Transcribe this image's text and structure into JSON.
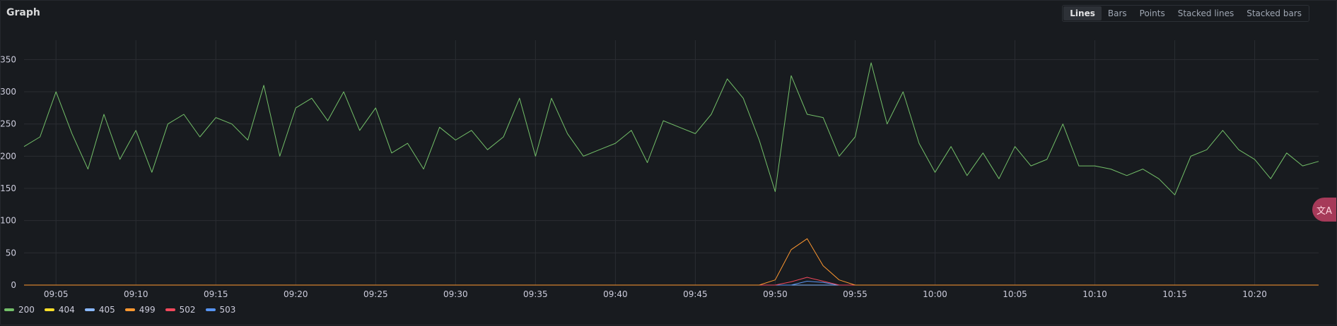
{
  "panel": {
    "title": "Graph"
  },
  "toolbar": {
    "options": [
      {
        "label": "Lines",
        "active": true
      },
      {
        "label": "Bars",
        "active": false
      },
      {
        "label": "Points",
        "active": false
      },
      {
        "label": "Stacked lines",
        "active": false
      },
      {
        "label": "Stacked bars",
        "active": false
      }
    ]
  },
  "legend": [
    {
      "name": "200",
      "color": "#73bf69"
    },
    {
      "name": "404",
      "color": "#fade2a"
    },
    {
      "name": "405",
      "color": "#8ab8ff"
    },
    {
      "name": "499",
      "color": "#ff9830"
    },
    {
      "name": "502",
      "color": "#f2495c"
    },
    {
      "name": "503",
      "color": "#5794f2"
    }
  ],
  "translate_button": {
    "icon": "translate-icon",
    "glyph": "文A"
  },
  "chart_data": {
    "type": "line",
    "title": "Graph",
    "x_range": [
      "09:03",
      "10:24"
    ],
    "xtick_labels": [
      "09:05",
      "09:10",
      "09:15",
      "09:20",
      "09:25",
      "09:30",
      "09:35",
      "09:40",
      "09:45",
      "09:50",
      "09:55",
      "10:00",
      "10:05",
      "10:10",
      "10:15",
      "10:20"
    ],
    "ylim": [
      0,
      380
    ],
    "yticks": [
      0,
      50,
      100,
      150,
      200,
      250,
      300,
      350
    ],
    "grid": true,
    "legend_position": "bottom-left",
    "series": [
      {
        "name": "200",
        "color": "#73bf69",
        "points": [
          [
            "09:03",
            215
          ],
          [
            "09:04",
            230
          ],
          [
            "09:05",
            300
          ],
          [
            "09:06",
            235
          ],
          [
            "09:07",
            180
          ],
          [
            "09:08",
            265
          ],
          [
            "09:09",
            195
          ],
          [
            "09:10",
            240
          ],
          [
            "09:11",
            175
          ],
          [
            "09:12",
            250
          ],
          [
            "09:13",
            265
          ],
          [
            "09:14",
            230
          ],
          [
            "09:15",
            260
          ],
          [
            "09:16",
            250
          ],
          [
            "09:17",
            225
          ],
          [
            "09:18",
            310
          ],
          [
            "09:19",
            200
          ],
          [
            "09:20",
            275
          ],
          [
            "09:21",
            290
          ],
          [
            "09:22",
            255
          ],
          [
            "09:23",
            300
          ],
          [
            "09:24",
            240
          ],
          [
            "09:25",
            275
          ],
          [
            "09:26",
            205
          ],
          [
            "09:27",
            220
          ],
          [
            "09:28",
            180
          ],
          [
            "09:29",
            245
          ],
          [
            "09:30",
            225
          ],
          [
            "09:31",
            240
          ],
          [
            "09:32",
            210
          ],
          [
            "09:33",
            230
          ],
          [
            "09:34",
            290
          ],
          [
            "09:35",
            200
          ],
          [
            "09:36",
            290
          ],
          [
            "09:37",
            235
          ],
          [
            "09:38",
            200
          ],
          [
            "09:39",
            210
          ],
          [
            "09:40",
            220
          ],
          [
            "09:41",
            240
          ],
          [
            "09:42",
            190
          ],
          [
            "09:43",
            255
          ],
          [
            "09:44",
            245
          ],
          [
            "09:45",
            235
          ],
          [
            "09:46",
            265
          ],
          [
            "09:47",
            320
          ],
          [
            "09:48",
            290
          ],
          [
            "09:49",
            225
          ],
          [
            "09:50",
            145
          ],
          [
            "09:51",
            325
          ],
          [
            "09:52",
            265
          ],
          [
            "09:53",
            260
          ],
          [
            "09:54",
            200
          ],
          [
            "09:55",
            230
          ],
          [
            "09:56",
            345
          ],
          [
            "09:57",
            250
          ],
          [
            "09:58",
            300
          ],
          [
            "09:59",
            220
          ],
          [
            "10:00",
            175
          ],
          [
            "10:01",
            215
          ],
          [
            "10:02",
            170
          ],
          [
            "10:03",
            205
          ],
          [
            "10:04",
            165
          ],
          [
            "10:05",
            215
          ],
          [
            "10:06",
            185
          ],
          [
            "10:07",
            195
          ],
          [
            "10:08",
            250
          ],
          [
            "10:09",
            185
          ],
          [
            "10:10",
            185
          ],
          [
            "10:11",
            180
          ],
          [
            "10:12",
            170
          ],
          [
            "10:13",
            180
          ],
          [
            "10:14",
            165
          ],
          [
            "10:15",
            140
          ],
          [
            "10:16",
            200
          ],
          [
            "10:17",
            210
          ],
          [
            "10:18",
            240
          ],
          [
            "10:19",
            210
          ],
          [
            "10:20",
            195
          ],
          [
            "10:21",
            165
          ],
          [
            "10:22",
            205
          ],
          [
            "10:23",
            185
          ],
          [
            "10:24",
            192
          ]
        ]
      },
      {
        "name": "499",
        "color": "#ff9830",
        "points": [
          [
            "09:03",
            0
          ],
          [
            "09:49",
            0
          ],
          [
            "09:50",
            8
          ],
          [
            "09:51",
            55
          ],
          [
            "09:52",
            72
          ],
          [
            "09:53",
            30
          ],
          [
            "09:54",
            8
          ],
          [
            "09:55",
            0
          ],
          [
            "10:24",
            0
          ]
        ]
      },
      {
        "name": "502",
        "color": "#f2495c",
        "points": [
          [
            "09:03",
            0
          ],
          [
            "09:50",
            0
          ],
          [
            "09:51",
            5
          ],
          [
            "09:52",
            12
          ],
          [
            "09:53",
            6
          ],
          [
            "09:54",
            0
          ],
          [
            "10:24",
            0
          ]
        ]
      },
      {
        "name": "503",
        "color": "#5794f2",
        "points": [
          [
            "09:03",
            0
          ],
          [
            "09:51",
            0
          ],
          [
            "09:52",
            6
          ],
          [
            "09:53",
            4
          ],
          [
            "09:54",
            0
          ],
          [
            "10:24",
            0
          ]
        ]
      },
      {
        "name": "405",
        "color": "#8ab8ff",
        "points": [
          [
            "09:03",
            0
          ],
          [
            "10:24",
            0
          ]
        ]
      },
      {
        "name": "404",
        "color": "#fade2a",
        "points": [
          [
            "09:03",
            0
          ],
          [
            "10:24",
            0
          ]
        ]
      }
    ]
  }
}
